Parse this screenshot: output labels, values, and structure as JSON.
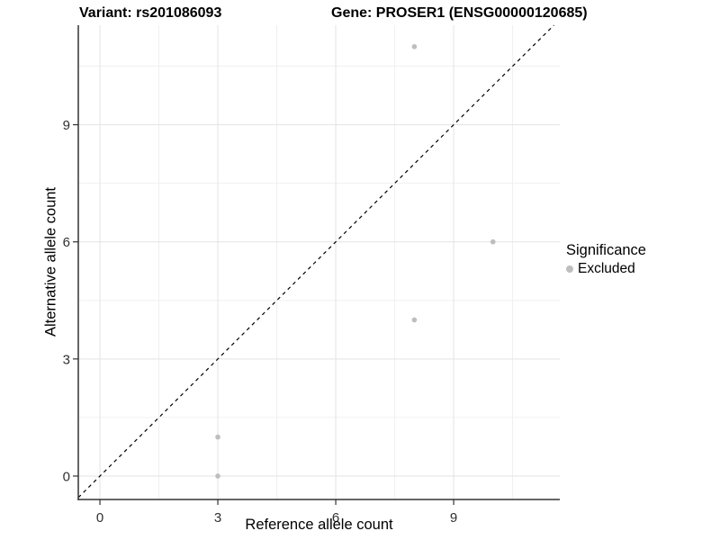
{
  "figure": {
    "title_left": "Variant: rs201086093",
    "title_right": "Gene: PROSER1 (ENSG00000120685)"
  },
  "chart_data": {
    "type": "scatter",
    "xlabel": "Reference allele count",
    "ylabel": "Alternative allele count",
    "x_ticks": [
      0,
      3,
      6,
      9
    ],
    "y_ticks": [
      0,
      3,
      6,
      9
    ],
    "x_minor": [
      1.5,
      4.5,
      7.5,
      10.5
    ],
    "y_minor": [
      1.5,
      4.5,
      7.5,
      10.5
    ],
    "xlim": [
      -0.55,
      11.7
    ],
    "ylim": [
      -0.6,
      11.55
    ],
    "grid": true,
    "identity_line": {
      "style": "dashed",
      "from": [
        -0.55,
        -0.55
      ],
      "to": [
        11.55,
        11.55
      ]
    },
    "series": [
      {
        "name": "Excluded",
        "color": "#bebebe",
        "points": [
          [
            3,
            0
          ],
          [
            3,
            1
          ],
          [
            8,
            4
          ],
          [
            8,
            11
          ],
          [
            10,
            6
          ]
        ]
      }
    ],
    "legend": {
      "title": "Significance",
      "position": "right",
      "entries": [
        {
          "label": "Excluded",
          "color": "#bebebe"
        }
      ]
    }
  },
  "colors": {
    "point": "#bebebe",
    "grid_major": "#e3e3e3",
    "grid_minor": "#f0f0f0",
    "axis_line": "#333333",
    "tick_label": "#303030",
    "identity_line": "#000000",
    "background": "#ffffff"
  }
}
